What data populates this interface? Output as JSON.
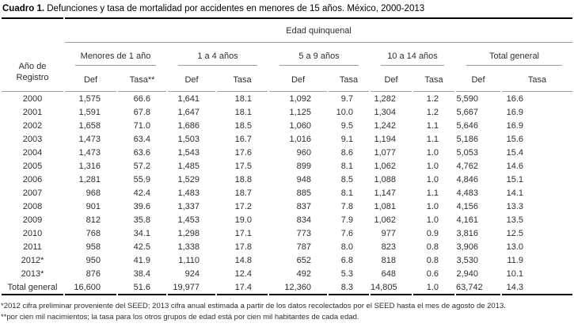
{
  "title": {
    "prefix": "Cuadro 1.",
    "text": " Defunciones y tasa de mortalidad por accidentes en menores de 15 años. México, 2000-2013"
  },
  "table": {
    "corner_header": "Año de Registro",
    "span_header": "Edad quinquenal",
    "groups": [
      {
        "label": "Menores de 1 año",
        "def": "Def",
        "tasa": "Tasa**"
      },
      {
        "label": "1 a 4 años",
        "def": "Def",
        "tasa": "Tasa"
      },
      {
        "label": "5 a 9 años",
        "def": "Def",
        "tasa": "Tasa"
      },
      {
        "label": "10 a 14 años",
        "def": "Def",
        "tasa": "Tasa"
      },
      {
        "label": "Total general",
        "def": "Def",
        "tasa": "Tasa"
      }
    ],
    "rows": [
      {
        "label": "2000",
        "values": [
          "1,575",
          "66.6",
          "1,641",
          "18.1",
          "1,092",
          "9.7",
          "1,282",
          "1.2",
          "5,590",
          "16.6"
        ]
      },
      {
        "label": "2001",
        "values": [
          "1,591",
          "67.8",
          "1,647",
          "18.1",
          "1,125",
          "10.0",
          "1,304",
          "1.2",
          "5,667",
          "16.9"
        ]
      },
      {
        "label": "2002",
        "values": [
          "1,658",
          "71.0",
          "1,686",
          "18.5",
          "1,060",
          "9.5",
          "1,242",
          "1.1",
          "5,646",
          "16.9"
        ]
      },
      {
        "label": "2003",
        "values": [
          "1,473",
          "63.4",
          "1,503",
          "16.7",
          "1,016",
          "9.1",
          "1,194",
          "1.1",
          "5,186",
          "15.6"
        ]
      },
      {
        "label": "2004",
        "values": [
          "1,473",
          "63.6",
          "1,543",
          "17.6",
          "960",
          "8.6",
          "1,077",
          "1.0",
          "5,053",
          "15.4"
        ]
      },
      {
        "label": "2005",
        "values": [
          "1,316",
          "57.2",
          "1,485",
          "17.5",
          "899",
          "8.1",
          "1,062",
          "1.0",
          "4,762",
          "14.6"
        ]
      },
      {
        "label": "2006",
        "values": [
          "1,281",
          "55.9",
          "1,529",
          "18.8",
          "948",
          "8.5",
          "1,088",
          "1.0",
          "4,846",
          "15.1"
        ]
      },
      {
        "label": "2007",
        "values": [
          "968",
          "42.4",
          "1,483",
          "18.7",
          "885",
          "8.1",
          "1,147",
          "1.1",
          "4,483",
          "14.1"
        ]
      },
      {
        "label": "2008",
        "values": [
          "901",
          "39.6",
          "1,337",
          "17.2",
          "837",
          "7.8",
          "1,081",
          "1.0",
          "4,156",
          "13.3"
        ]
      },
      {
        "label": "2009",
        "values": [
          "812",
          "35.8",
          "1,453",
          "19.0",
          "834",
          "7.9",
          "1,062",
          "1.0",
          "4,161",
          "13.5"
        ]
      },
      {
        "label": "2010",
        "values": [
          "768",
          "34.1",
          "1,298",
          "17.1",
          "773",
          "7.6",
          "977",
          "0.9",
          "3,816",
          "12.5"
        ]
      },
      {
        "label": "2011",
        "values": [
          "958",
          "42.5",
          "1,338",
          "17.8",
          "787",
          "8.0",
          "823",
          "0.8",
          "3,906",
          "13.0"
        ]
      },
      {
        "label": "2012*",
        "values": [
          "950",
          "41.9",
          "1,110",
          "14.8",
          "652",
          "6.8",
          "818",
          "0.8",
          "3,530",
          "11.9"
        ]
      },
      {
        "label": "2013*",
        "values": [
          "876",
          "38.4",
          "924",
          "12.4",
          "492",
          "5.3",
          "648",
          "0.6",
          "2,940",
          "10.1"
        ]
      },
      {
        "label": "Total general",
        "values": [
          "16,600",
          "51.6",
          "19,977",
          "17.4",
          "12,360",
          "8.3",
          "14,805",
          "1.0",
          "63,742",
          "14.3"
        ]
      }
    ]
  },
  "footnotes": [
    "*2012 cifra preliminar proveniente del SEED; 2013 cifra anual estimada a partir de los datos recolectados por el SEED hasta el mes de agosto de 2013.",
    "**por cien mil nacimientos; la tasa para los otros grupos de edad está por cien mil habitantes de cada edad."
  ],
  "colors": {
    "rule_dark": "#000000",
    "rule_light": "#9d9d9d",
    "text": "#2e2e2e"
  }
}
